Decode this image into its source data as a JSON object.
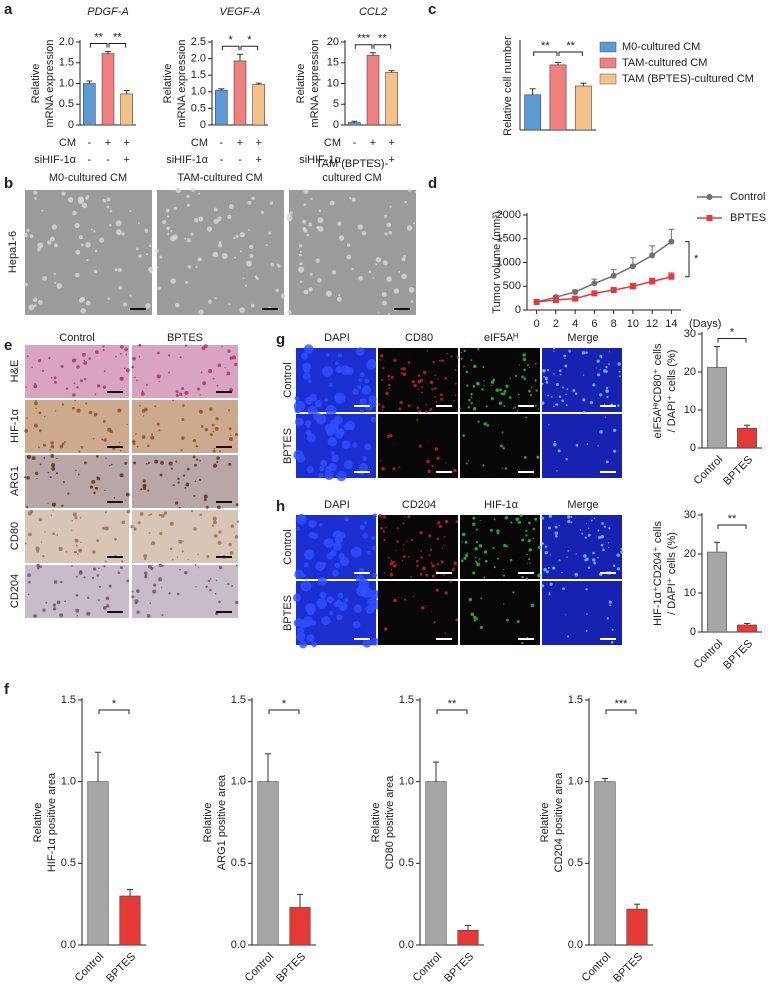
{
  "panel_labels": [
    "a",
    "b",
    "c",
    "d",
    "e",
    "f",
    "g",
    "h"
  ],
  "chart_data": [
    {
      "type": "bar",
      "title": "PDGF-A",
      "ylabel": [
        "Relative",
        "mRNA expression"
      ],
      "values": [
        1.0,
        1.72,
        0.75
      ],
      "errors": [
        0.06,
        0.05,
        0.08
      ],
      "colors": [
        "#5b9bd5",
        "#f08080",
        "#f4c18a"
      ],
      "ylim": [
        0,
        2
      ],
      "yticks": [
        0,
        0.5,
        {
          "value": 1,
          "label": "1.0"
        },
        1.5,
        {
          "value": 2,
          "label": "2.0"
        }
      ],
      "significance": [
        "**",
        "**"
      ],
      "conditions": [
        {
          "label": "CM",
          "values": [
            "-",
            "+",
            "+"
          ]
        },
        {
          "label": "siHIF-1α",
          "values": [
            "-",
            "-",
            "+"
          ]
        }
      ]
    },
    {
      "type": "bar",
      "title": "VEGF-A",
      "ylabel": [
        "Relative",
        "mRNA expression"
      ],
      "values": [
        1.05,
        1.93,
        1.22
      ],
      "errors": [
        0.04,
        0.2,
        0.04
      ],
      "colors": [
        "#5b9bd5",
        "#f08080",
        "#f4c18a"
      ],
      "ylim": [
        0,
        2.5
      ],
      "yticks": [
        0,
        0.5,
        {
          "value": 1,
          "label": "1.0"
        },
        1.5,
        {
          "value": 2,
          "label": "2.0"
        },
        2.5
      ],
      "significance": [
        "*",
        "*"
      ],
      "conditions": [
        {
          "label": "CM",
          "values": [
            "-",
            "+",
            "+"
          ]
        },
        {
          "label": "siHIF-1α",
          "values": [
            "-",
            "-",
            "+"
          ]
        }
      ]
    },
    {
      "type": "bar",
      "title": "CCL2",
      "ylabel": [
        "Relative",
        "mRNA expression"
      ],
      "values": [
        0.6,
        16.8,
        12.7
      ],
      "errors": [
        0.3,
        0.6,
        0.4
      ],
      "colors": [
        "#5b9bd5",
        "#f08080",
        "#f4c18a"
      ],
      "ylim": [
        0,
        20
      ],
      "yticks": [
        0,
        5,
        10,
        15,
        20
      ],
      "significance": [
        "***",
        "**"
      ],
      "conditions": [
        {
          "label": "CM",
          "values": [
            "-",
            "+",
            "+"
          ]
        },
        {
          "label": "siHIF-1α",
          "values": [
            "-",
            "-",
            "+"
          ]
        }
      ]
    },
    {
      "type": "bar",
      "ylabel": [
        "Relative cell number"
      ],
      "series": [
        {
          "name": "M0-cultured CM",
          "color": "#5b9bd5",
          "values": [
            1.0
          ],
          "errors": [
            0.17
          ]
        },
        {
          "name": "TAM-cultured CM",
          "color": "#f08080",
          "values": [
            1.85
          ],
          "errors": [
            0.07
          ]
        },
        {
          "name": "TAM (BPTES)-cultured CM",
          "color": "#f4c18a",
          "values": [
            1.25
          ],
          "errors": [
            0.08
          ]
        }
      ],
      "ylim": [
        0,
        2.5
      ],
      "significance": [
        "**",
        "**"
      ]
    },
    {
      "type": "line",
      "ylabel": [
        "Tumor volume (mm³)"
      ],
      "xlabel": "(Days)",
      "x": [
        0,
        2,
        4,
        6,
        8,
        10,
        12,
        14
      ],
      "xlim": [
        -1,
        15
      ],
      "xticks": [
        0,
        2,
        4,
        6,
        8,
        10,
        12,
        14
      ],
      "ylim": [
        0,
        2000
      ],
      "yticks": [
        0,
        500,
        1000,
        1500,
        2000
      ],
      "series": [
        {
          "name": "Control",
          "color": "#707070",
          "marker": "circle",
          "values": [
            170,
            270,
            380,
            560,
            720,
            920,
            1150,
            1440
          ],
          "errors": [
            20,
            30,
            40,
            90,
            130,
            180,
            200,
            260
          ]
        },
        {
          "name": "BPTES",
          "color": "#e8383d",
          "marker": "square",
          "values": [
            170,
            210,
            240,
            350,
            420,
            500,
            600,
            700
          ],
          "errors": [
            20,
            25,
            30,
            40,
            50,
            60,
            70,
            80
          ]
        }
      ],
      "significance": [
        "*"
      ]
    },
    {
      "type": "bar",
      "ylabel": [
        "eIF5AᴴⁱCD80⁺ cells",
        "/ DAPI⁺ cells (%)"
      ],
      "categories": [
        "Control",
        "BPTES"
      ],
      "values": [
        21.2,
        5.2
      ],
      "errors": [
        5.5,
        0.8
      ],
      "colors": [
        "#a6a6a6",
        "#e53935"
      ],
      "ylim": [
        0,
        30
      ],
      "yticks": [
        0,
        10,
        20,
        30
      ],
      "significance": [
        "*"
      ]
    },
    {
      "type": "bar",
      "ylabel": [
        "HIF-1α⁺CD204⁺ cells",
        "/ DAPI⁺ cells (%)"
      ],
      "categories": [
        "Control",
        "BPTES"
      ],
      "values": [
        20.5,
        1.8
      ],
      "errors": [
        2.5,
        0.4
      ],
      "colors": [
        "#a6a6a6",
        "#e53935"
      ],
      "ylim": [
        0,
        30
      ],
      "yticks": [
        0,
        10,
        20,
        30
      ],
      "significance": [
        "**"
      ]
    },
    {
      "type": "bar",
      "ylabel": [
        "Relative",
        "HIF-1α positive area"
      ],
      "categories": [
        "Control",
        "BPTES"
      ],
      "values": [
        1.0,
        0.3
      ],
      "errors": [
        0.18,
        0.04
      ],
      "colors": [
        "#a6a6a6",
        "#e53935"
      ],
      "ylim": [
        0,
        1.5
      ],
      "yticks": [
        {
          "value": 0,
          "label": "0.0"
        },
        0.5,
        {
          "value": 1,
          "label": "1.0"
        },
        1.5
      ],
      "significance": [
        "*"
      ]
    },
    {
      "type": "bar",
      "ylabel": [
        "Relative",
        "ARG1 positive area"
      ],
      "categories": [
        "Control",
        "BPTES"
      ],
      "values": [
        1.0,
        0.23
      ],
      "errors": [
        0.17,
        0.08
      ],
      "colors": [
        "#a6a6a6",
        "#e53935"
      ],
      "ylim": [
        0,
        1.5
      ],
      "yticks": [
        {
          "value": 0,
          "label": "0.0"
        },
        0.5,
        {
          "value": 1,
          "label": "1.0"
        },
        1.5
      ],
      "significance": [
        "*"
      ]
    },
    {
      "type": "bar",
      "ylabel": [
        "Relative",
        "CD80 positive area"
      ],
      "categories": [
        "Control",
        "BPTES"
      ],
      "values": [
        1.0,
        0.09
      ],
      "errors": [
        0.12,
        0.03
      ],
      "colors": [
        "#a6a6a6",
        "#e53935"
      ],
      "ylim": [
        0,
        1.5
      ],
      "yticks": [
        {
          "value": 0,
          "label": "0.0"
        },
        0.5,
        {
          "value": 1,
          "label": "1.0"
        },
        1.5
      ],
      "significance": [
        "**"
      ]
    },
    {
      "type": "bar",
      "ylabel": [
        "Relative",
        "CD204 positive area"
      ],
      "categories": [
        "Control",
        "BPTES"
      ],
      "values": [
        1.0,
        0.22
      ],
      "errors": [
        0.02,
        0.03
      ],
      "colors": [
        "#a6a6a6",
        "#e53935"
      ],
      "ylim": [
        0,
        1.5
      ],
      "yticks": [
        {
          "value": 0,
          "label": "0.0"
        },
        0.5,
        {
          "value": 1,
          "label": "1.0"
        },
        1.5
      ],
      "significance": [
        "***"
      ]
    }
  ],
  "micrographs": {
    "b": {
      "columns": [
        [
          "M0-cultured CM"
        ],
        [
          "TAM-cultured CM"
        ],
        [
          "TAM (BPTES)-",
          "cultured CM"
        ]
      ],
      "row": "Hepa1-6"
    },
    "e": {
      "columns": [
        "Control",
        "BPTES"
      ],
      "rows": [
        "H&E",
        "HIF-1α",
        "ARG1",
        "CD80",
        "CD204"
      ]
    },
    "g": {
      "channels": [
        "DAPI",
        "CD80",
        "eIF5Aᴴ",
        "Merge"
      ],
      "rows": [
        "Control",
        "BPTES"
      ]
    },
    "h": {
      "channels": [
        "DAPI",
        "CD204",
        "HIF-1α",
        "Merge"
      ],
      "rows": [
        "Control",
        "BPTES"
      ]
    }
  }
}
